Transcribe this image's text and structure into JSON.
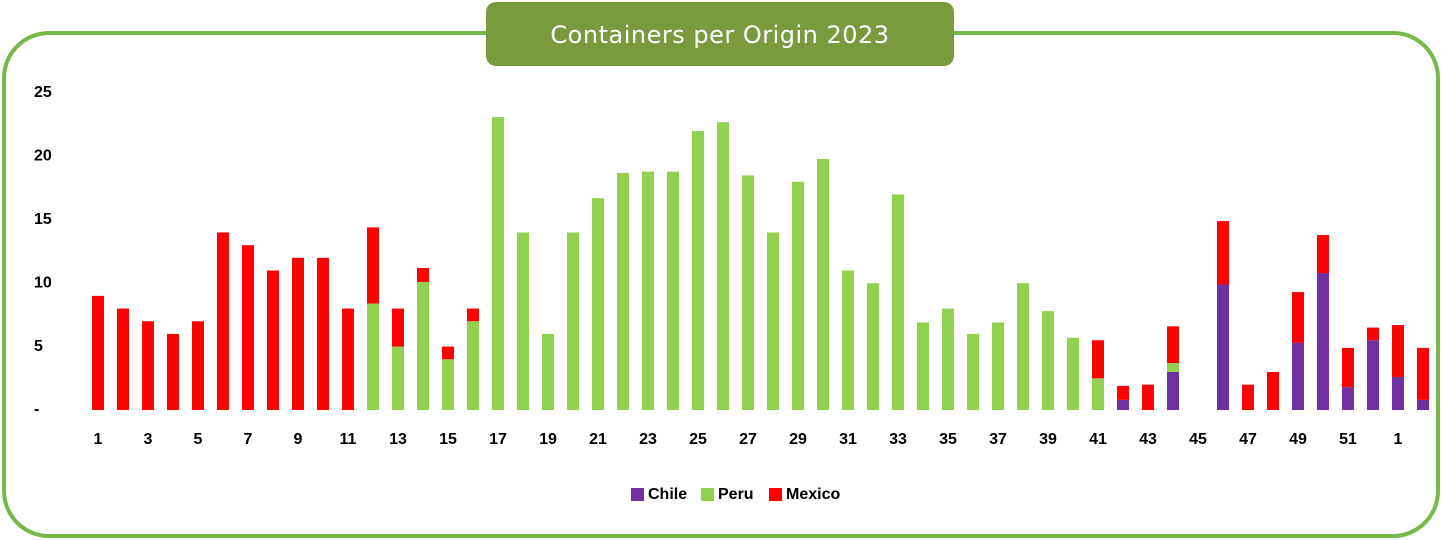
{
  "chart_data": {
    "type": "stacked_bar",
    "title": "Containers per Origin 2023",
    "categories": [
      "1",
      null,
      "3",
      null,
      "5",
      null,
      "7",
      null,
      "9",
      null,
      "11",
      null,
      "13",
      null,
      "15",
      null,
      "17",
      null,
      "19",
      null,
      "21",
      null,
      "23",
      null,
      "25",
      null,
      "27",
      null,
      "29",
      null,
      "31",
      null,
      "33",
      null,
      "35",
      null,
      "37",
      null,
      "39",
      null,
      "41",
      null,
      "43",
      null,
      "45",
      null,
      "47",
      null,
      "49",
      null,
      "51",
      null,
      "1",
      null
    ],
    "series": [
      {
        "name": "Chile",
        "color": "#7030a0",
        "values": [
          0,
          0,
          0,
          0,
          0,
          0,
          0,
          0,
          0,
          0,
          0,
          0,
          0,
          0,
          0,
          0,
          0,
          0,
          0,
          0,
          0,
          0,
          0,
          0,
          0,
          0,
          0,
          0,
          0,
          0,
          0,
          0,
          0,
          0,
          0,
          0,
          0,
          0,
          0,
          0,
          0,
          0.8,
          0,
          3,
          0,
          9.9,
          0,
          0,
          5.3,
          10.8,
          1.8,
          5.5,
          2.6,
          0.8
        ]
      },
      {
        "name": "Peru",
        "color": "#92d050",
        "values": [
          0,
          0,
          0,
          0,
          0,
          0,
          0,
          0,
          0,
          0,
          0,
          8.4,
          5,
          10.1,
          4,
          7,
          23.1,
          14,
          6,
          14,
          16.7,
          18.7,
          18.8,
          18.8,
          22,
          22.7,
          18.5,
          14,
          18,
          19.8,
          11,
          10,
          17,
          6.9,
          8,
          6,
          6.9,
          10,
          7.8,
          5.7,
          2.5,
          0,
          0,
          0.7,
          0,
          0,
          0,
          0,
          0,
          0,
          0,
          0,
          0,
          0
        ]
      },
      {
        "name": "Mexico",
        "color": "#ff0000",
        "values": [
          9,
          8,
          7,
          6,
          7,
          14,
          13,
          11,
          12,
          12,
          8,
          6,
          3,
          1.1,
          1,
          1,
          0,
          0,
          0,
          0,
          0,
          0,
          0,
          0,
          0,
          0,
          0,
          0,
          0,
          0,
          0,
          0,
          0,
          0,
          0,
          0,
          0,
          0,
          0,
          0,
          3,
          1.1,
          2,
          2.9,
          0,
          5,
          2,
          3,
          4,
          3,
          3.1,
          1,
          4.1,
          4.1
        ]
      }
    ],
    "ylim": [
      0,
      25
    ],
    "yticks": [
      {
        "value": 0,
        "label": "-"
      },
      5,
      10,
      15,
      20,
      25
    ],
    "legend": "bottom"
  }
}
